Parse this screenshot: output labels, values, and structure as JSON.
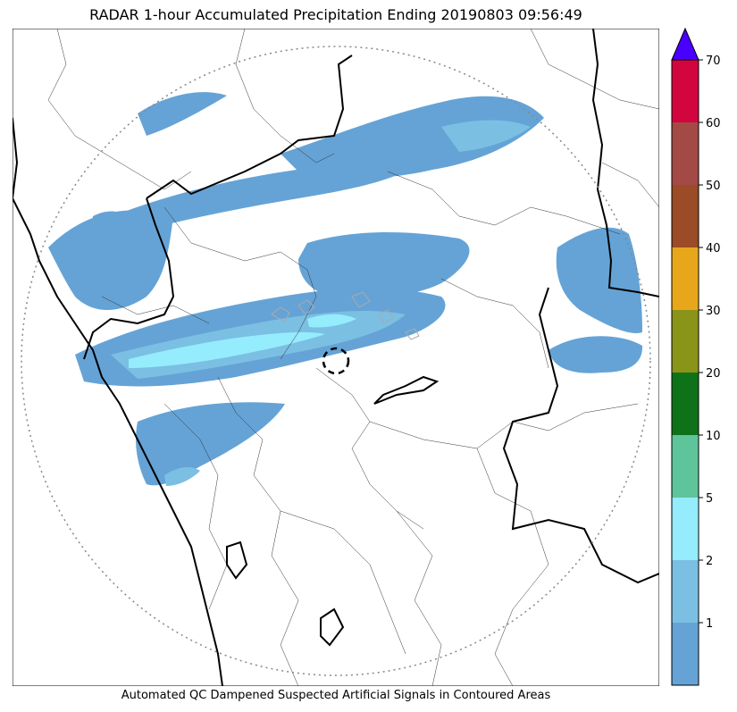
{
  "title": "RADAR 1-hour Accumulated Precipitation Ending 20190803 09:56:49",
  "caption": "Automated QC Dampened Suspected Artificial Signals in Contoured Areas",
  "colorbar": {
    "ticks": [
      "1",
      "2",
      "5",
      "10",
      "20",
      "30",
      "40",
      "50",
      "60",
      "70"
    ],
    "colors": [
      "#65a3d6",
      "#7bbfe3",
      "#95ecfd",
      "#5ec49a",
      "#0e7318",
      "#8a9418",
      "#e8a71a",
      "#9b4b26",
      "#a44a46",
      "#d3053f"
    ],
    "extend_color": "#4a00ff"
  },
  "map": {
    "precip_color": "#65a3d6",
    "heavy_color": "#7bbfe3",
    "core_color": "#95ecfd",
    "coast_color": "#000000",
    "range_ring_color": "#888888"
  }
}
